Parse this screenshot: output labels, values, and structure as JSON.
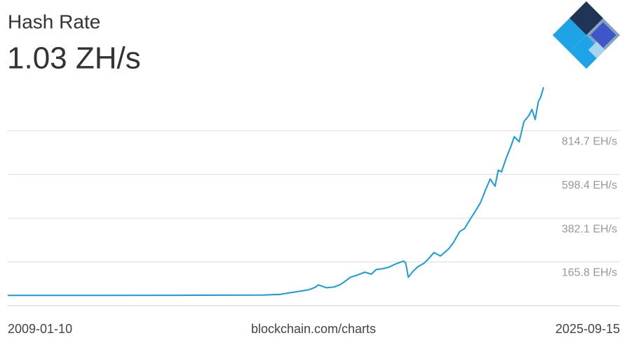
{
  "chart_data": {
    "type": "line",
    "title": "Hash Rate",
    "subtitle": "1.03 ZH/s",
    "source": "blockchain.com/charts",
    "color": "#1b9ad8",
    "grid": true,
    "x": [
      2009.03,
      2012.0,
      2015.0,
      2017.0,
      2017.5,
      2017.85,
      2018.1,
      2018.4,
      2018.6,
      2018.7,
      2018.95,
      2019.2,
      2019.4,
      2019.55,
      2019.7,
      2019.9,
      2020.15,
      2020.35,
      2020.5,
      2020.7,
      2020.9,
      2021.1,
      2021.35,
      2021.42,
      2021.5,
      2021.65,
      2021.8,
      2022.0,
      2022.15,
      2022.3,
      2022.5,
      2022.75,
      2022.9,
      2023.1,
      2023.25,
      2023.4,
      2023.6,
      2023.75,
      2023.9,
      2024.05,
      2024.2,
      2024.3,
      2024.4,
      2024.55,
      2024.7,
      2024.8,
      2024.95,
      2025.1,
      2025.25,
      2025.35,
      2025.45,
      2025.55,
      2025.62,
      2025.71
    ],
    "values": [
      0,
      0,
      1,
      2,
      5,
      14,
      20,
      28,
      40,
      52,
      38,
      42,
      55,
      72,
      90,
      100,
      115,
      105,
      128,
      132,
      140,
      155,
      170,
      160,
      90,
      120,
      142,
      160,
      185,
      212,
      195,
      229,
      260,
      316,
      330,
      370,
      420,
      460,
      520,
      576,
      540,
      620,
      611,
      680,
      740,
      785,
      760,
      860,
      889,
      920,
      870,
      960,
      980,
      1030
    ],
    "xlim": [
      2009.03,
      2025.71
    ],
    "xticks": [
      {
        "value": 2009.03,
        "label": "2009-01-10"
      },
      {
        "value": 2025.71,
        "label": "2025-09-15"
      }
    ],
    "ylim": [
      -51,
      1050
    ],
    "yticks": [
      {
        "value": 165.8,
        "label": "165.8 EH/s"
      },
      {
        "value": 382.1,
        "label": "382.1 EH/s"
      },
      {
        "value": 598.4,
        "label": "598.4 EH/s"
      },
      {
        "value": 814.7,
        "label": "814.7 EH/s"
      }
    ]
  }
}
